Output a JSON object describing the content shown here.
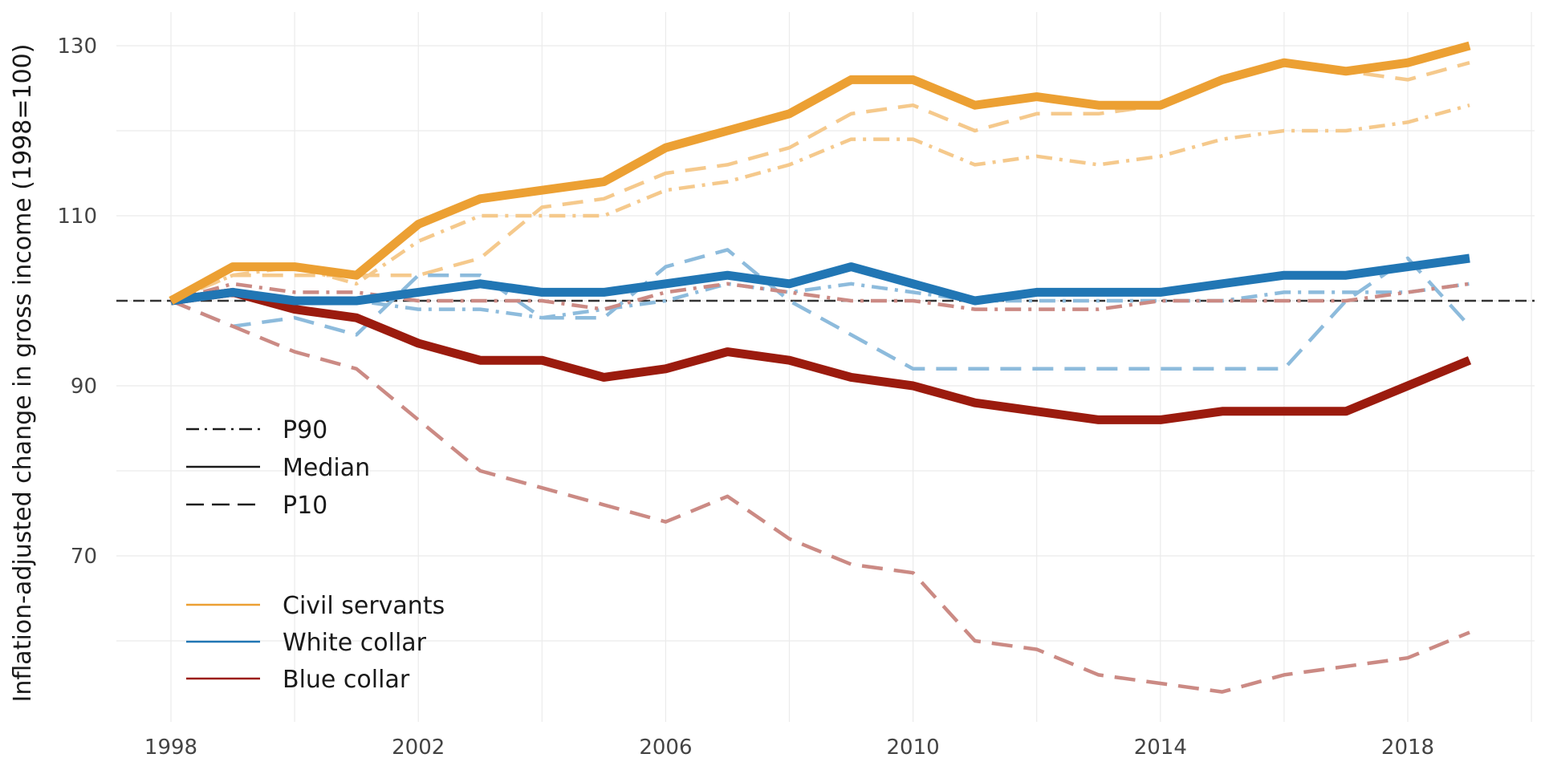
{
  "chart_data": {
    "type": "line",
    "title": "",
    "xlabel": "",
    "ylabel": "Inflation-adjusted change in gross income (1998=100)",
    "xlim": [
      1998,
      2019
    ],
    "ylim": [
      54,
      134
    ],
    "x_ticks": [
      "1998",
      "2002",
      "2006",
      "2010",
      "2014",
      "2018"
    ],
    "y_ticks": [
      "70",
      "90",
      "110",
      "130"
    ],
    "reference_line": 100,
    "grid": true,
    "x": [
      1998,
      1999,
      2000,
      2001,
      2002,
      2003,
      2004,
      2005,
      2006,
      2007,
      2008,
      2009,
      2010,
      2011,
      2012,
      2013,
      2014,
      2015,
      2016,
      2017,
      2018,
      2019
    ],
    "legend_linetype": {
      "position": "left-middle",
      "entries": [
        {
          "label": "P90",
          "dash": "dashdot"
        },
        {
          "label": "Median",
          "dash": "solid"
        },
        {
          "label": "P10",
          "dash": "dashed"
        }
      ]
    },
    "legend_group": {
      "position": "bottom-left",
      "entries": [
        {
          "label": "Civil servants",
          "color": "#ECA033"
        },
        {
          "label": "White collar",
          "color": "#2176B4"
        },
        {
          "label": "Blue collar",
          "color": "#9B1B0E"
        }
      ]
    },
    "series": [
      {
        "group": "Civil servants",
        "stat": "P90",
        "color": "#F5C98C",
        "values": [
          100,
          103,
          104,
          102,
          107,
          110,
          110,
          110,
          113,
          114,
          116,
          119,
          119,
          116,
          117,
          116,
          117,
          119,
          120,
          120,
          121,
          123
        ]
      },
      {
        "group": "Civil servants",
        "stat": "P10",
        "color": "#F5C98C",
        "values": [
          100,
          103,
          103,
          103,
          103,
          105,
          111,
          112,
          115,
          116,
          118,
          122,
          123,
          120,
          122,
          122,
          123,
          126,
          128,
          127,
          126,
          128
        ]
      },
      {
        "group": "White collar",
        "stat": "P90",
        "color": "#8DBBDC",
        "values": [
          100,
          101,
          100,
          100,
          99,
          99,
          98,
          99,
          100,
          102,
          101,
          102,
          101,
          100,
          100,
          100,
          100,
          100,
          101,
          101,
          101,
          102
        ]
      },
      {
        "group": "White collar",
        "stat": "P10",
        "color": "#8DBBDC",
        "values": [
          100,
          97,
          98,
          96,
          103,
          103,
          98,
          98,
          104,
          106,
          100,
          96,
          92,
          92,
          92,
          92,
          92,
          92,
          92,
          100,
          105,
          97
        ]
      },
      {
        "group": "Blue collar",
        "stat": "P90",
        "color": "#CB8A84",
        "values": [
          100,
          102,
          101,
          101,
          100,
          100,
          100,
          99,
          101,
          102,
          101,
          100,
          100,
          99,
          99,
          99,
          100,
          100,
          100,
          100,
          101,
          102
        ]
      },
      {
        "group": "Blue collar",
        "stat": "P10",
        "color": "#CB8A84",
        "values": [
          100,
          97,
          94,
          92,
          86,
          80,
          78,
          76,
          74,
          77,
          72,
          69,
          68,
          60,
          59,
          56,
          55,
          54,
          56,
          57,
          58,
          61
        ]
      },
      {
        "group": "Blue collar",
        "stat": "Median",
        "color": "#9B1B0E",
        "values": [
          100,
          101,
          99,
          98,
          95,
          93,
          93,
          91,
          92,
          94,
          93,
          91,
          90,
          88,
          87,
          86,
          86,
          87,
          87,
          87,
          90,
          93
        ]
      },
      {
        "group": "White collar",
        "stat": "Median",
        "color": "#2176B4",
        "values": [
          100,
          101,
          100,
          100,
          101,
          102,
          101,
          101,
          102,
          103,
          102,
          104,
          102,
          100,
          101,
          101,
          101,
          102,
          103,
          103,
          104,
          105
        ]
      },
      {
        "group": "Civil servants",
        "stat": "Median",
        "color": "#ECA033",
        "values": [
          100,
          104,
          104,
          103,
          109,
          112,
          113,
          114,
          118,
          120,
          122,
          126,
          126,
          123,
          124,
          123,
          123,
          126,
          128,
          127,
          128,
          130
        ]
      }
    ]
  }
}
